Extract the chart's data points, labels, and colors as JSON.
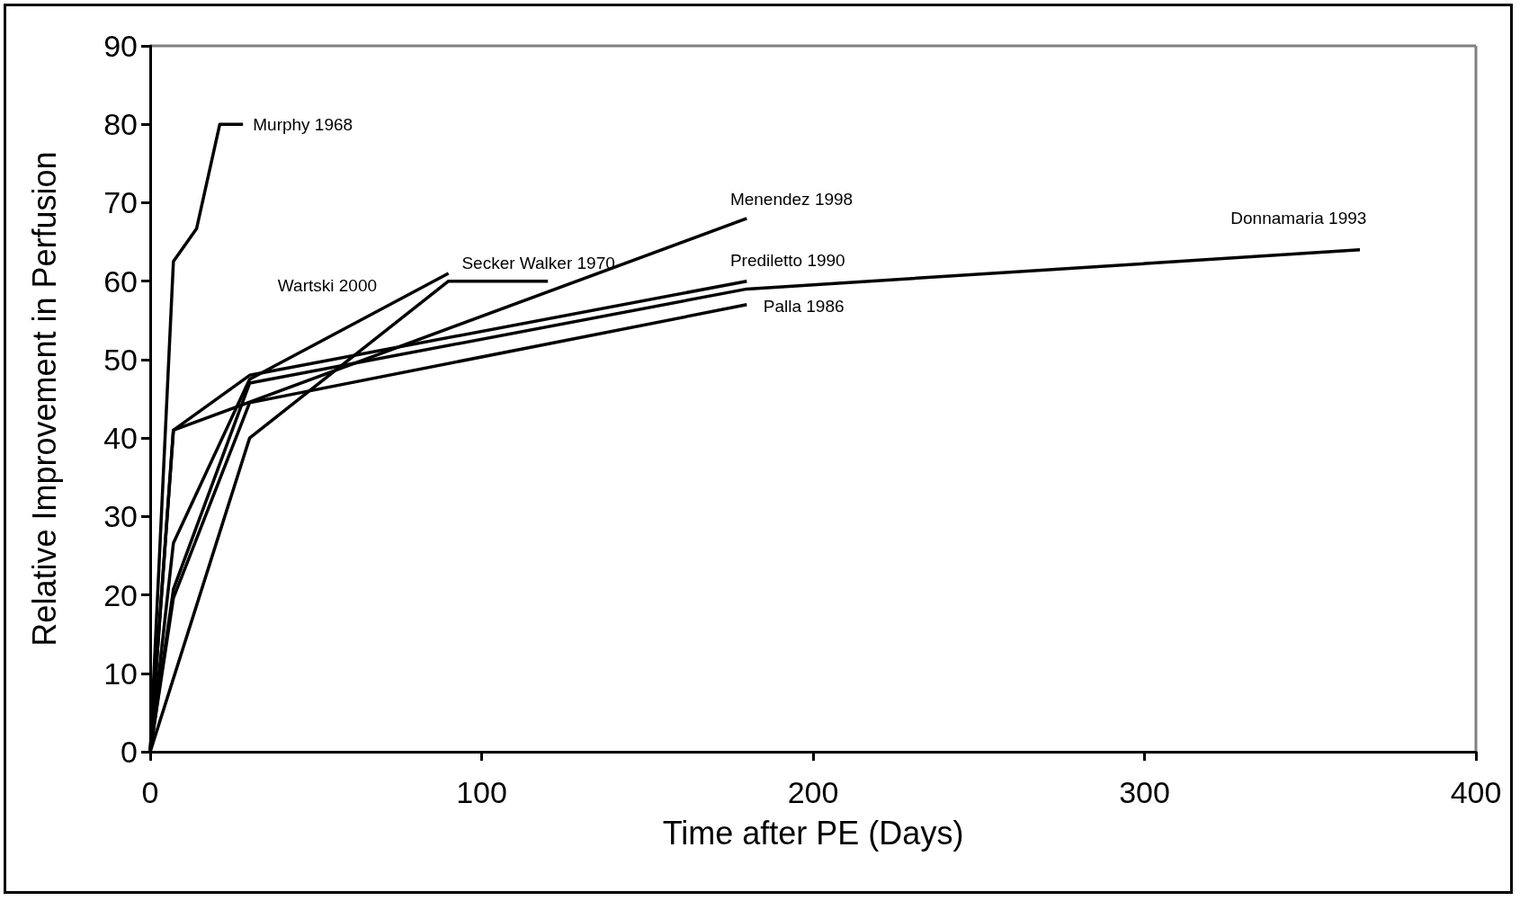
{
  "chart_data": {
    "type": "line",
    "xlabel": "Time after PE (Days)",
    "ylabel": "Relative Improvement in Perfusion",
    "xlim": [
      0,
      400
    ],
    "xticks": [
      0,
      100,
      200,
      300,
      400
    ],
    "ylim": [
      0,
      90
    ],
    "yticks": [
      0,
      10,
      20,
      30,
      40,
      50,
      60,
      70,
      80,
      90
    ],
    "grid": false,
    "marker": "none",
    "line_style": "solid",
    "series": [
      {
        "name": "Murphy 1968",
        "color": "#000000",
        "x": [
          0,
          7,
          14,
          21,
          28
        ],
        "values": [
          0,
          62.5,
          66.7,
          80,
          80
        ]
      },
      {
        "name": "Secker Walker 1970",
        "color": "#000000",
        "x": [
          0,
          30,
          90,
          120
        ],
        "values": [
          0,
          40,
          60,
          60
        ]
      },
      {
        "name": "Wartski 2000",
        "color": "#000000",
        "x": [
          0,
          7,
          30,
          90
        ],
        "values": [
          0,
          26.6,
          47.5,
          61
        ]
      },
      {
        "name": "Menendez 1998",
        "color": "#000000",
        "x": [
          0,
          7,
          180
        ],
        "values": [
          0,
          41,
          68
        ]
      },
      {
        "name": "Prediletto 1990",
        "color": "#000000",
        "x": [
          0,
          7,
          30,
          180
        ],
        "values": [
          0,
          41,
          48,
          60
        ]
      },
      {
        "name": "Donnamaria 1993",
        "color": "#000000",
        "x": [
          0,
          7,
          30,
          180,
          365
        ],
        "values": [
          0,
          20.7,
          47,
          59,
          64
        ]
      },
      {
        "name": "Palla 1986",
        "color": "#000000",
        "x": [
          0,
          7,
          30,
          180
        ],
        "values": [
          0,
          19.6,
          44.5,
          57
        ]
      }
    ]
  }
}
